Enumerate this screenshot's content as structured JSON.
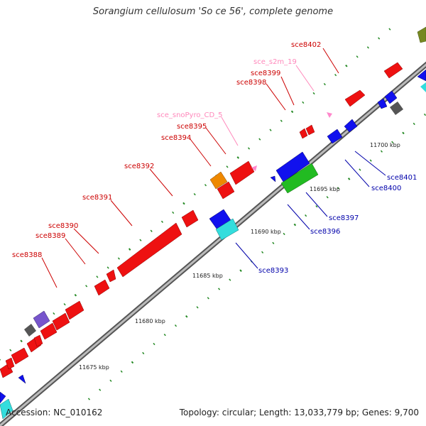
{
  "title": "Sorangium cellulosum 'So ce 56', complete genome",
  "footer": {
    "accession": "Accession: NC_010162",
    "topology": "Topology: circular; Length: 13,033,779 bp; Genes: 9,700"
  },
  "colors": {
    "backbone": "#888888",
    "forward_label": "#cc0000",
    "reverse_label": "#0000aa",
    "rna_label": "#ff88bb",
    "tick": "#228822"
  },
  "scale_labels": [
    "11675 kbp",
    "11680 kbp",
    "11685 kbp",
    "11690 kbp",
    "11695 kbp",
    "11700 kbp"
  ],
  "gene_labels": [
    {
      "text": "sce8402",
      "kind": "forward"
    },
    {
      "text": "sce_s2m_19",
      "kind": "rna"
    },
    {
      "text": "sce8399",
      "kind": "forward"
    },
    {
      "text": "sce8398",
      "kind": "forward"
    },
    {
      "text": "sce_snoPyro_CD_5",
      "kind": "rna"
    },
    {
      "text": "sce8395",
      "kind": "forward"
    },
    {
      "text": "sce8394",
      "kind": "forward"
    },
    {
      "text": "sce8392",
      "kind": "forward"
    },
    {
      "text": "sce8391",
      "kind": "forward"
    },
    {
      "text": "sce8390",
      "kind": "forward"
    },
    {
      "text": "sce8389",
      "kind": "forward"
    },
    {
      "text": "sce8388",
      "kind": "forward"
    },
    {
      "text": "sce8401",
      "kind": "reverse"
    },
    {
      "text": "sce8400",
      "kind": "reverse"
    },
    {
      "text": "sce8397",
      "kind": "reverse"
    },
    {
      "text": "sce8396",
      "kind": "reverse"
    },
    {
      "text": "sce8393",
      "kind": "reverse"
    }
  ]
}
